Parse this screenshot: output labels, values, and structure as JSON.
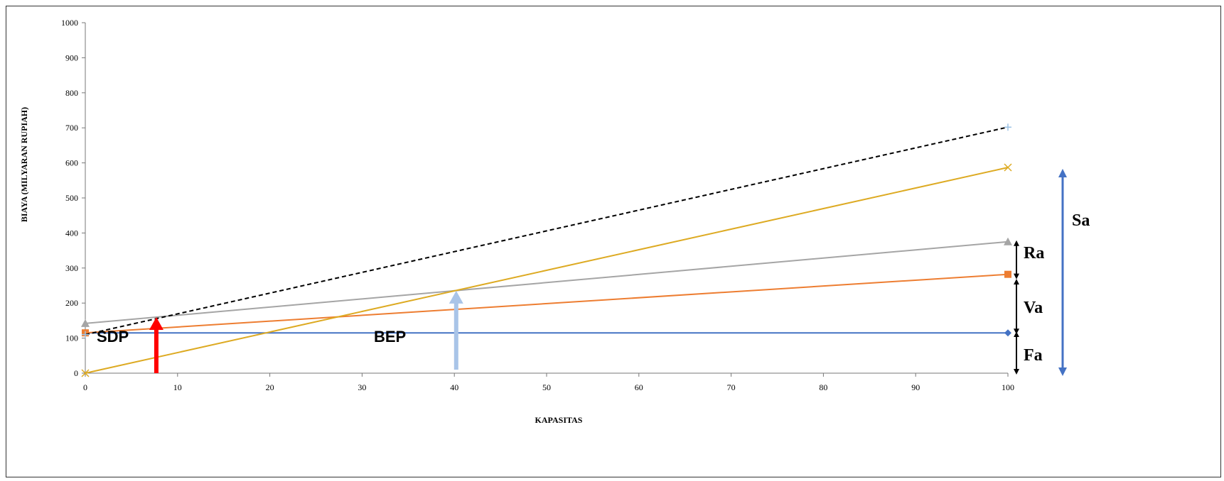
{
  "chart_data": {
    "type": "line",
    "title": "",
    "xlabel": "KAPASITAS",
    "ylabel": "BIAYA (MILYARAN RUPIAH)",
    "xlim": [
      0,
      100
    ],
    "ylim": [
      0,
      1000
    ],
    "xticks": [
      0,
      10,
      20,
      30,
      40,
      50,
      60,
      70,
      80,
      90,
      100
    ],
    "yticks": [
      0,
      100,
      200,
      300,
      400,
      500,
      600,
      700,
      800,
      900,
      1000
    ],
    "grid": false,
    "legend": "none",
    "series": [
      {
        "key": "fixed",
        "color": "#4472C4",
        "marker": "diamond",
        "dash": false,
        "points": [
          [
            0,
            115
          ],
          [
            100,
            115
          ]
        ]
      },
      {
        "key": "variable",
        "color": "#ED7D31",
        "marker": "square",
        "dash": false,
        "points": [
          [
            0,
            115
          ],
          [
            100,
            282
          ]
        ]
      },
      {
        "key": "regulated",
        "color": "#A5A5A5",
        "marker": "triangle",
        "dash": false,
        "points": [
          [
            0,
            142
          ],
          [
            100,
            375
          ]
        ]
      },
      {
        "key": "sales",
        "color": "#DDAA22",
        "marker": "x",
        "dash": false,
        "points": [
          [
            0,
            0
          ],
          [
            100,
            587
          ]
        ]
      },
      {
        "key": "total",
        "color": "#000000",
        "marker": "plus",
        "dash": true,
        "points": [
          [
            0,
            110
          ],
          [
            100,
            702
          ]
        ]
      }
    ],
    "annotations": {
      "sdp": {
        "label": "SDP",
        "x": 7.7,
        "y_from": 0,
        "y_to": 160,
        "color": "#FF0000"
      },
      "bep": {
        "label": "BEP",
        "x": 40.2,
        "y_from": 10,
        "y_to": 235,
        "color": "#A9C4E8"
      },
      "fa": {
        "label": "Fa",
        "y_from": 0,
        "y_to": 115
      },
      "va": {
        "label": "Va",
        "y_from": 115,
        "y_to": 265
      },
      "ra": {
        "label": "Ra",
        "y_from": 272,
        "y_to": 375
      },
      "sa": {
        "label": "Sa",
        "y_from": 0,
        "y_to": 575,
        "color": "#4472C4"
      }
    }
  }
}
